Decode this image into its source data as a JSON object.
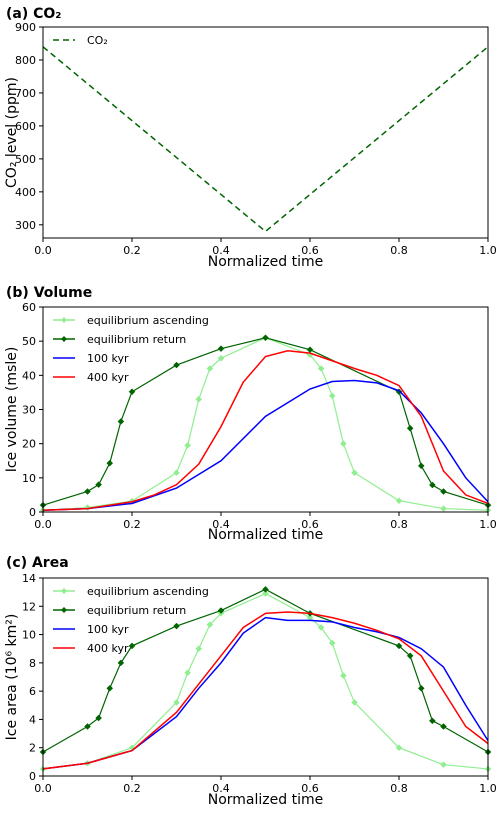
{
  "chart_data": [
    {
      "type": "line",
      "title": "(a) CO₂",
      "xlabel": "Normalized time",
      "ylabel": "CO₂ level (ppm)",
      "xlim": [
        0,
        1
      ],
      "ylim": [
        260,
        900
      ],
      "xticks": [
        "0.0",
        "0.2",
        "0.4",
        "0.6",
        "0.8",
        "1.0"
      ],
      "yticks": [
        "300",
        "400",
        "500",
        "600",
        "700",
        "800",
        "900"
      ],
      "legend_position": "top-left",
      "series": [
        {
          "name": "CO₂",
          "color": "#006400",
          "style": "dashed",
          "x": [
            0,
            0.5,
            1
          ],
          "y": [
            840,
            280,
            840
          ]
        }
      ]
    },
    {
      "type": "line",
      "title": "(b) Volume",
      "xlabel": "Normalized time",
      "ylabel": "Ice volume (msle)",
      "xlim": [
        0,
        1
      ],
      "ylim": [
        0,
        60
      ],
      "xticks": [
        "0.0",
        "0.2",
        "0.4",
        "0.6",
        "0.8",
        "1.0"
      ],
      "yticks": [
        "0",
        "10",
        "20",
        "30",
        "40",
        "50",
        "60"
      ],
      "legend_position": "top-left",
      "series": [
        {
          "name": "equilibrium ascending",
          "color": "#90ee90",
          "marker": "diamond",
          "x": [
            0,
            0.1,
            0.2,
            0.3,
            0.325,
            0.35,
            0.375,
            0.4,
            0.5,
            0.6,
            0.625,
            0.65,
            0.675,
            0.7,
            0.8,
            0.9,
            1.0
          ],
          "y": [
            0.5,
            1.3,
            3.2,
            11.5,
            19.5,
            33,
            42,
            45,
            51,
            46,
            42,
            34,
            20,
            11.5,
            3.3,
            1,
            0.5
          ]
        },
        {
          "name": "equilibrium return",
          "color": "#006400",
          "marker": "diamond",
          "x": [
            0,
            0.1,
            0.125,
            0.15,
            0.175,
            0.2,
            0.3,
            0.4,
            0.5,
            0.6,
            0.8,
            0.825,
            0.85,
            0.875,
            0.9,
            1.0
          ],
          "y": [
            2,
            6,
            8,
            14.3,
            26.5,
            35.2,
            43,
            47.8,
            51,
            47.5,
            35.2,
            24.5,
            13.5,
            7.9,
            6,
            2
          ]
        },
        {
          "name": "100 kyr",
          "color": "#0000ff",
          "x": [
            0,
            0.1,
            0.2,
            0.3,
            0.4,
            0.5,
            0.6,
            0.65,
            0.7,
            0.75,
            0.8,
            0.85,
            0.9,
            0.95,
            1.0
          ],
          "y": [
            0.5,
            1,
            2.5,
            7,
            15,
            28,
            36,
            38.2,
            38.5,
            37.8,
            35.5,
            29,
            20,
            10,
            3
          ]
        },
        {
          "name": "400 kyr",
          "color": "#ff0000",
          "x": [
            0,
            0.1,
            0.2,
            0.25,
            0.3,
            0.35,
            0.4,
            0.45,
            0.5,
            0.55,
            0.6,
            0.7,
            0.75,
            0.8,
            0.85,
            0.9,
            0.95,
            1.0
          ],
          "y": [
            0.5,
            1,
            3,
            5,
            8,
            14,
            25,
            38,
            45.5,
            47.2,
            46.5,
            42,
            40,
            37,
            28,
            12,
            5,
            2.5
          ]
        }
      ]
    },
    {
      "type": "line",
      "title": "(c) Area",
      "xlabel": "Normalized time",
      "ylabel": "Ice area (10⁶ km²)",
      "xlim": [
        0,
        1
      ],
      "ylim": [
        0,
        14
      ],
      "xticks": [
        "0.0",
        "0.2",
        "0.4",
        "0.6",
        "0.8",
        "1.0"
      ],
      "yticks": [
        "0",
        "2",
        "4",
        "6",
        "8",
        "10",
        "12",
        "14"
      ],
      "legend_position": "top-left",
      "series": [
        {
          "name": "equilibrium ascending",
          "color": "#90ee90",
          "marker": "diamond",
          "x": [
            0,
            0.1,
            0.2,
            0.3,
            0.325,
            0.35,
            0.375,
            0.4,
            0.5,
            0.6,
            0.625,
            0.65,
            0.675,
            0.7,
            0.8,
            0.9,
            1.0
          ],
          "y": [
            0.5,
            0.9,
            2,
            5.2,
            7.3,
            9,
            10.7,
            11.5,
            12.9,
            11.2,
            10.5,
            9.4,
            7.1,
            5.2,
            2,
            0.8,
            0.5
          ]
        },
        {
          "name": "equilibrium return",
          "color": "#006400",
          "marker": "diamond",
          "x": [
            0,
            0.1,
            0.125,
            0.15,
            0.175,
            0.2,
            0.3,
            0.4,
            0.5,
            0.6,
            0.8,
            0.825,
            0.85,
            0.875,
            0.9,
            1.0
          ],
          "y": [
            1.7,
            3.5,
            4.1,
            6.2,
            8,
            9.2,
            10.6,
            11.7,
            13.2,
            11.5,
            9.2,
            8.5,
            6.2,
            3.9,
            3.5,
            1.7
          ]
        },
        {
          "name": "100 kyr",
          "color": "#0000ff",
          "x": [
            0,
            0.1,
            0.2,
            0.3,
            0.35,
            0.4,
            0.45,
            0.5,
            0.55,
            0.6,
            0.65,
            0.7,
            0.75,
            0.8,
            0.85,
            0.9,
            0.95,
            1.0
          ],
          "y": [
            0.5,
            0.9,
            1.8,
            4.2,
            6.2,
            8,
            10.1,
            11.2,
            11,
            11,
            10.9,
            10.5,
            10.2,
            9.8,
            9,
            7.7,
            5,
            2.5
          ]
        },
        {
          "name": "400 kyr",
          "color": "#ff0000",
          "x": [
            0,
            0.1,
            0.2,
            0.3,
            0.35,
            0.4,
            0.45,
            0.5,
            0.55,
            0.6,
            0.65,
            0.7,
            0.75,
            0.8,
            0.85,
            0.9,
            0.95,
            1.0
          ],
          "y": [
            0.5,
            0.9,
            1.8,
            4.5,
            6.5,
            8.5,
            10.5,
            11.5,
            11.6,
            11.5,
            11.2,
            10.8,
            10.3,
            9.7,
            8.5,
            6,
            3.5,
            2.3
          ]
        }
      ]
    }
  ]
}
